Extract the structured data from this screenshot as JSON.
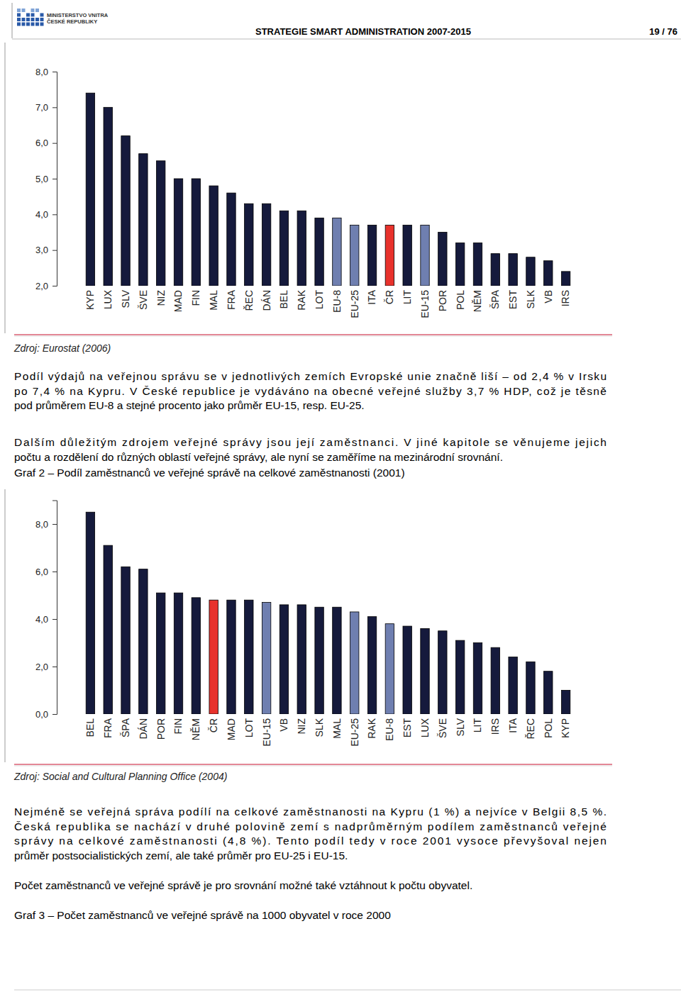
{
  "header": {
    "logo_lines": [
      "MINISTERSTVO VNITRA",
      "ČESKÉ REPUBLIKY"
    ],
    "title": "STRATEGIE SMART ADMINISTRATION 2007-2015",
    "page": "19 / 76"
  },
  "chart_data": [
    {
      "type": "bar",
      "categories": [
        "KYP",
        "LUX",
        "SLV",
        "ŠVE",
        "NIZ",
        "MAD",
        "FIN",
        "MAL",
        "FRA",
        "ŘEC",
        "DÁN",
        "BEL",
        "RAK",
        "LOT",
        "EU-8",
        "EU-25",
        "ITA",
        "ČR",
        "LIT",
        "EU-15",
        "POR",
        "POL",
        "NĚM",
        "ŠPA",
        "EST",
        "SLK",
        "VB",
        "IRS"
      ],
      "values": [
        7.4,
        7.0,
        6.2,
        5.7,
        5.5,
        5.0,
        5.0,
        4.8,
        4.6,
        4.3,
        4.3,
        4.1,
        4.1,
        3.9,
        3.9,
        3.7,
        3.7,
        3.7,
        3.7,
        3.7,
        3.5,
        3.2,
        3.2,
        2.9,
        2.9,
        2.8,
        2.7,
        2.4
      ],
      "colors": [
        "#151a3c",
        "#151a3c",
        "#151a3c",
        "#151a3c",
        "#151a3c",
        "#151a3c",
        "#151a3c",
        "#151a3c",
        "#151a3c",
        "#151a3c",
        "#151a3c",
        "#151a3c",
        "#151a3c",
        "#151a3c",
        "#6f7fb0",
        "#6f7fb0",
        "#151a3c",
        "#e8322c",
        "#151a3c",
        "#6f7fb0",
        "#151a3c",
        "#151a3c",
        "#151a3c",
        "#151a3c",
        "#151a3c",
        "#151a3c",
        "#151a3c",
        "#151a3c"
      ],
      "ylim": [
        2,
        8
      ],
      "yticks": [
        {
          "value": 2,
          "label": "2,0"
        },
        {
          "value": 3,
          "label": "3,0"
        },
        {
          "value": 4,
          "label": "4,0"
        },
        {
          "value": 5,
          "label": "5,0"
        },
        {
          "value": 6,
          "label": "6,0"
        },
        {
          "value": 7,
          "label": "7,0"
        },
        {
          "value": 8,
          "label": "8,0"
        }
      ],
      "grid": false,
      "annotations": [
        "Zdroj: Eurostat (2006)"
      ]
    },
    {
      "type": "bar",
      "title": "Graf 2 – Podíl zaměstnanců ve veřejné správě na celkové zaměstnanosti (2001)",
      "categories": [
        "BEL",
        "FRA",
        "ŠPA",
        "DÁN",
        "POR",
        "FIN",
        "NĚM",
        "ČR",
        "MAD",
        "LOT",
        "EU-15",
        "VB",
        "NIZ",
        "SLK",
        "MAL",
        "EU-25",
        "RAK",
        "EU-8",
        "EST",
        "LUX",
        "ŠVE",
        "SLV",
        "LIT",
        "IRS",
        "ITA",
        "ŘEC",
        "POL",
        "KYP"
      ],
      "values": [
        8.5,
        7.1,
        6.2,
        6.1,
        5.1,
        5.1,
        4.9,
        4.8,
        4.8,
        4.8,
        4.7,
        4.6,
        4.6,
        4.5,
        4.5,
        4.3,
        4.1,
        3.8,
        3.7,
        3.6,
        3.5,
        3.1,
        3.0,
        2.8,
        2.4,
        2.2,
        1.8,
        1.0
      ],
      "colors": [
        "#151a3c",
        "#151a3c",
        "#151a3c",
        "#151a3c",
        "#151a3c",
        "#151a3c",
        "#151a3c",
        "#e8322c",
        "#151a3c",
        "#151a3c",
        "#6f7fb0",
        "#151a3c",
        "#151a3c",
        "#151a3c",
        "#151a3c",
        "#6f7fb0",
        "#151a3c",
        "#6f7fb0",
        "#151a3c",
        "#151a3c",
        "#151a3c",
        "#151a3c",
        "#151a3c",
        "#151a3c",
        "#151a3c",
        "#151a3c",
        "#151a3c",
        "#151a3c"
      ],
      "ylim": [
        0,
        9
      ],
      "yticks": [
        {
          "value": 0,
          "label": "0,0"
        },
        {
          "value": 2,
          "label": "2,0"
        },
        {
          "value": 4,
          "label": "4,0"
        },
        {
          "value": 6,
          "label": "6,0"
        },
        {
          "value": 8,
          "label": "8,0"
        }
      ],
      "grid": false,
      "annotations": [
        "Zdroj: Social and Cultural Planning Office (2004)"
      ]
    }
  ],
  "paragraphs": [
    [
      "Podíl výdajů na veřejnou správu se v jednotlivých zemích Evropské unie značně liší – od 2,4 % v Irsku",
      "po 7,4 % na Kypru. V České republice je vydáváno na obecné veřejné služby 3,7 % HDP, což je těsně",
      "pod průměrem EU-8 a stejné procento jako průměr EU-15, resp. EU-25."
    ],
    [
      "Dalším důležitým zdrojem veřejné správy jsou její zaměstnanci. V jiné kapitole se věnujeme jejich",
      "počtu a rozdělení do různých oblastí veřejné správy, ale nyní se zaměříme na mezinárodní srovnání."
    ],
    [
      "Nejméně se veřejná správa podílí na celkové zaměstnanosti na Kypru (1 %) a nejvíce v Belgii 8,5 %.",
      "Česká republika se nachází v druhé polovině zemí s nadprůměrným podílem zaměstnanců veřejné",
      "správy na celkové zaměstnanosti (4,8 %). Tento podíl tedy v roce 2001 vysoce převyšoval nejen",
      "průměr postsocialistických zemí, ale také průměr pro EU-25 i EU-15."
    ],
    [
      "Počet zaměstnanců ve veřejné správě je pro srovnání možné také vztáhnout k počtu obyvatel."
    ]
  ],
  "captions": [
    "Graf 3 – Počet zaměstnanců ve veřejné správě na 1000 obyvatel v roce 2000"
  ]
}
